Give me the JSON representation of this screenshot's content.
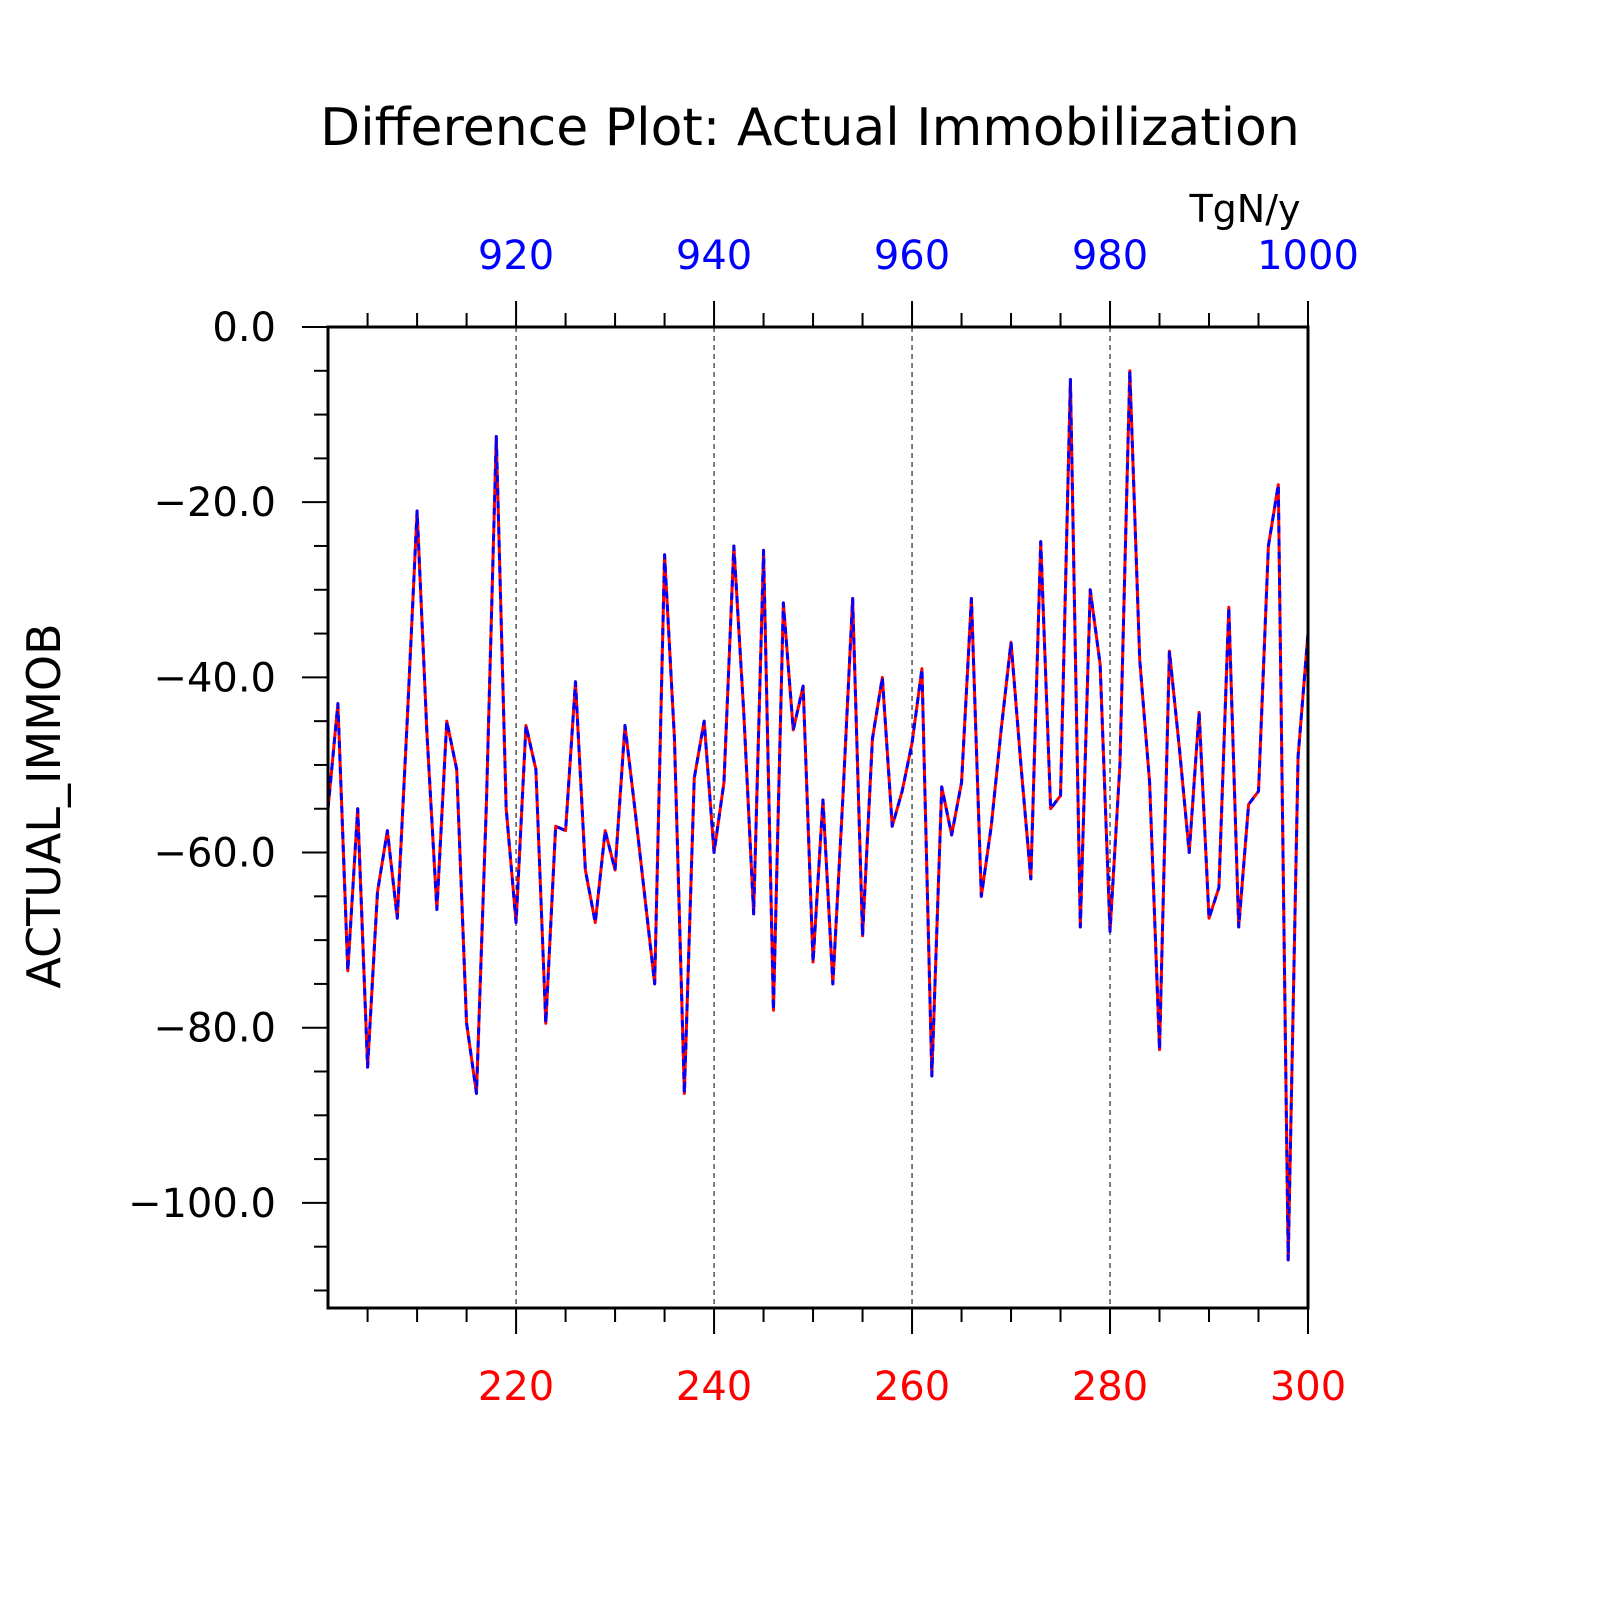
{
  "chart_data": {
    "type": "line",
    "title": "Difference Plot: Actual Immobilization",
    "ylabel": "ACTUAL_IMMOB",
    "units": "TgN/y",
    "ylim": [
      -112,
      0
    ],
    "xlim_bottom": [
      201,
      300
    ],
    "xlim_top": [
      901,
      1000
    ],
    "yticks": [
      0,
      -20,
      -40,
      -60,
      -80,
      -100
    ],
    "ytick_labels": [
      "0.0",
      "−20.0",
      "−40.0",
      "−60.0",
      "−80.0",
      "−100.0"
    ],
    "xticks_bottom": [
      220,
      240,
      260,
      280,
      300
    ],
    "xtick_labels_bottom": [
      "220",
      "240",
      "260",
      "280",
      "300"
    ],
    "xticks_top": [
      920,
      940,
      960,
      980,
      1000
    ],
    "xtick_labels_top": [
      "920",
      "940",
      "960",
      "980",
      "1000"
    ],
    "grid": "vertical dashed at labeled x ticks",
    "colors": {
      "bottom_axis": "#ff0000",
      "top_axis": "#0000ff",
      "line_solid": "#ff0000",
      "line_dashed": "#0000ff"
    },
    "series": [
      {
        "x_start": 201,
        "values": [
          -55,
          -43,
          -73.5,
          -55,
          -84.5,
          -64.5,
          -57.5,
          -67.5,
          -45,
          -21,
          -46.5,
          -66.5,
          -45,
          -50.5,
          -79.5,
          -87.5,
          -54.5,
          -12.5,
          -55,
          -68,
          -45.5,
          -50.5,
          -79.5,
          -57,
          -57.5,
          -40.5,
          -62,
          -68,
          -57.5,
          -62,
          -45.5,
          -55,
          -65,
          -75,
          -26,
          -47,
          -87.5,
          -51.5,
          -45,
          -60,
          -52,
          -25,
          -44,
          -67,
          -25.5,
          -78,
          -31.5,
          -46,
          -41,
          -72.5,
          -54,
          -75,
          -54,
          -31,
          -69.5,
          -47,
          -40,
          -57,
          -53,
          -47.5,
          -39,
          -85.5,
          -52.5,
          -58,
          -52,
          -31,
          -65,
          -57,
          -46,
          -36,
          -50,
          -63,
          -24.5,
          -55,
          -53.5,
          -6,
          -68.5,
          -30,
          -38.5,
          -69,
          -50,
          -5,
          -38,
          -52,
          -82.5,
          -37,
          -48,
          -60,
          -44,
          -67.5,
          -64,
          -32,
          -68.5,
          -54.5,
          -53,
          -25,
          -18,
          -106.5,
          -49,
          -35
        ]
      }
    ]
  }
}
